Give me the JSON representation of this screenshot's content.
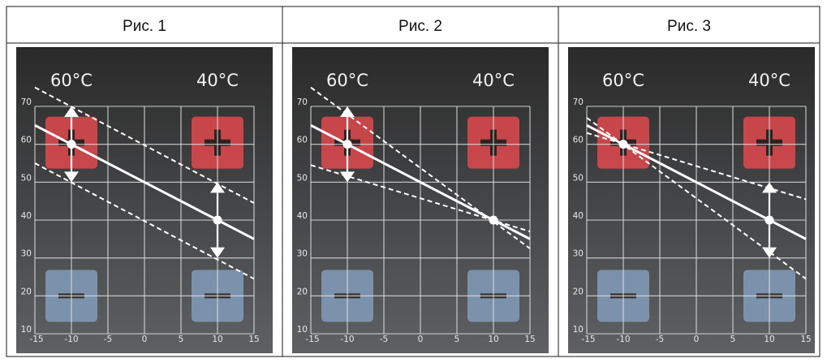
{
  "panels": [
    {
      "caption": "Рис. 1",
      "temp_left": "60°C",
      "temp_right": "40°C",
      "adjust": "both",
      "main_line": {
        "x1": -15,
        "y1": 65,
        "x2": 15,
        "y2": 35
      },
      "points": [
        {
          "x": -10,
          "y": 60
        },
        {
          "x": 10,
          "y": 40
        }
      ],
      "dashed_lines": [
        {
          "x1": -15,
          "y1": 75,
          "x2": 15,
          "y2": 44.5
        },
        {
          "x1": -15,
          "y1": 55,
          "x2": 15,
          "y2": 24.5
        }
      ],
      "arrows": [
        {
          "x": -10,
          "from": 60,
          "to": 70
        },
        {
          "x": -10,
          "from": 60,
          "to": 50
        },
        {
          "x": 10,
          "from": 40,
          "to": 50
        },
        {
          "x": 10,
          "from": 40,
          "to": 30
        }
      ]
    },
    {
      "caption": "Рис. 2",
      "temp_left": "60°C",
      "temp_right": "40°C",
      "adjust": "left",
      "main_line": {
        "x1": -15,
        "y1": 65,
        "x2": 15,
        "y2": 35
      },
      "points": [
        {
          "x": -10,
          "y": 60
        },
        {
          "x": 10,
          "y": 40
        }
      ],
      "dashed_lines": [
        {
          "x1": -15,
          "y1": 75,
          "x2": 15,
          "y2": 32.5
        },
        {
          "x1": -15,
          "y1": 54.5,
          "x2": 15,
          "y2": 37
        }
      ],
      "arrows": [
        {
          "x": -10,
          "from": 60,
          "to": 70
        },
        {
          "x": -10,
          "from": 60,
          "to": 50
        }
      ]
    },
    {
      "caption": "Рис. 3",
      "temp_left": "60°C",
      "temp_right": "40°C",
      "adjust": "right",
      "main_line": {
        "x1": -15,
        "y1": 65,
        "x2": 15,
        "y2": 35
      },
      "points": [
        {
          "x": -10,
          "y": 60
        },
        {
          "x": 10,
          "y": 40
        }
      ],
      "dashed_lines": [
        {
          "x1": -15,
          "y1": 67,
          "x2": 15,
          "y2": 24.5
        },
        {
          "x1": -15,
          "y1": 63,
          "x2": 15,
          "y2": 45.5
        }
      ],
      "arrows": [
        {
          "x": 10,
          "from": 40,
          "to": 50
        },
        {
          "x": 10,
          "from": 40,
          "to": 30
        }
      ]
    }
  ],
  "axes": {
    "x_ticks": [
      "-15",
      "-10",
      "-5",
      "0",
      "5",
      "10",
      "15"
    ],
    "y_ticks": [
      "10",
      "20",
      "30",
      "40",
      "50",
      "60",
      "70"
    ]
  },
  "colors": {
    "plus_button": "#d4484c",
    "minus_button": "#7f97b3",
    "background_top": "#2a2a2a",
    "background_bottom": "#5e6063"
  },
  "icons": {
    "plus": "plus-icon",
    "minus": "minus-icon"
  }
}
